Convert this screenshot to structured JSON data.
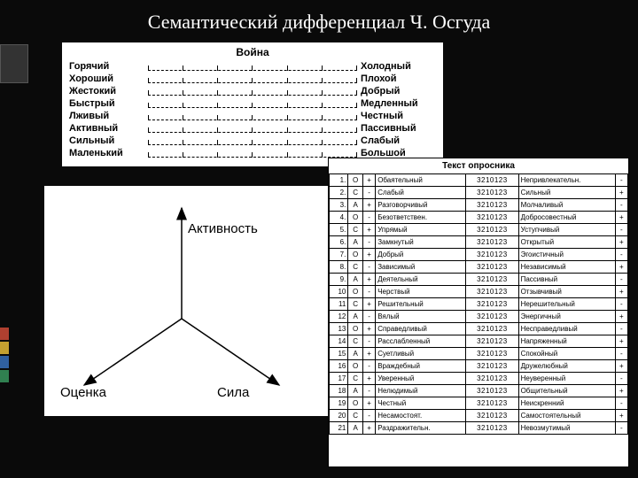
{
  "title": "Семантический дифференциал Ч. Осгуда",
  "sidebar_colors": [
    "#b04030",
    "#c4a030",
    "#3060a0",
    "#308050"
  ],
  "panel1": {
    "heading": "Война",
    "rows": [
      {
        "left": "Горячий",
        "right": "Холодный"
      },
      {
        "left": "Хороший",
        "right": "Плохой"
      },
      {
        "left": "Жестокий",
        "right": "Добрый"
      },
      {
        "left": "Быстрый",
        "right": "Медленный"
      },
      {
        "left": "Лживый",
        "right": "Честный"
      },
      {
        "left": "Активный",
        "right": "Пассивный"
      },
      {
        "left": "Сильный",
        "right": "Слабый"
      },
      {
        "left": "Маленький",
        "right": "Большой"
      }
    ],
    "ticks": 7
  },
  "panel2": {
    "labels": {
      "top": "Активность",
      "left": "Оценка",
      "right": "Сила"
    }
  },
  "panel3": {
    "heading": "Текст опросника",
    "scale": "3210123",
    "rows": [
      {
        "n": "1.",
        "f": "О",
        "s": "+",
        "l": "Обаятельный",
        "r": "Непривлекательн.",
        "s2": "-"
      },
      {
        "n": "2.",
        "f": "С",
        "s": "-",
        "l": "Слабый",
        "r": "Сильный",
        "s2": "+"
      },
      {
        "n": "3.",
        "f": "А",
        "s": "+",
        "l": "Разговорчивый",
        "r": "Молчаливый",
        "s2": "-"
      },
      {
        "n": "4.",
        "f": "О",
        "s": "-",
        "l": "Безответствен.",
        "r": "Добросовестный",
        "s2": "+"
      },
      {
        "n": "5.",
        "f": "С",
        "s": "+",
        "l": "Упрямый",
        "r": "Уступчивый",
        "s2": "-"
      },
      {
        "n": "6.",
        "f": "А",
        "s": "-",
        "l": "Замкнутый",
        "r": "Открытый",
        "s2": "+"
      },
      {
        "n": "7.",
        "f": "О",
        "s": "+",
        "l": "Добрый",
        "r": "Эгоистичный",
        "s2": "-"
      },
      {
        "n": "8.",
        "f": "С",
        "s": "-",
        "l": "Зависимый",
        "r": "Независимый",
        "s2": "+"
      },
      {
        "n": "9.",
        "f": "А",
        "s": "+",
        "l": "Деятельный",
        "r": "Пассивный",
        "s2": "-"
      },
      {
        "n": "10",
        "f": "О",
        "s": "-",
        "l": "Черствый",
        "r": "Отзывчивый",
        "s2": "+"
      },
      {
        "n": "11",
        "f": "С",
        "s": "+",
        "l": "Решительный",
        "r": "Нерешительный",
        "s2": "-"
      },
      {
        "n": "12",
        "f": "А",
        "s": "-",
        "l": "Вялый",
        "r": "Энергичный",
        "s2": "+"
      },
      {
        "n": "13",
        "f": "О",
        "s": "+",
        "l": "Справедливый",
        "r": "Несправедливый",
        "s2": "-"
      },
      {
        "n": "14",
        "f": "С",
        "s": "-",
        "l": "Расслабленный",
        "r": "Напряженный",
        "s2": "+"
      },
      {
        "n": "15",
        "f": "А",
        "s": "+",
        "l": "Суетливый",
        "r": "Спокойный",
        "s2": "-"
      },
      {
        "n": "16",
        "f": "О",
        "s": "-",
        "l": "Враждебный",
        "r": "Дружелюбный",
        "s2": "+"
      },
      {
        "n": "17",
        "f": "С",
        "s": "+",
        "l": "Уверенный",
        "r": "Неуверенный",
        "s2": "-"
      },
      {
        "n": "18",
        "f": "А",
        "s": "-",
        "l": "Нелюдимый",
        "r": "Общительный",
        "s2": "+"
      },
      {
        "n": "19",
        "f": "О",
        "s": "+",
        "l": "Честный",
        "r": "Неискренний",
        "s2": "-"
      },
      {
        "n": "20",
        "f": "С",
        "s": "-",
        "l": "Несамостоят.",
        "r": "Самостоятельный",
        "s2": "+"
      },
      {
        "n": "21",
        "f": "А",
        "s": "+",
        "l": "Раздражительн.",
        "r": "Невозмутимый",
        "s2": "-"
      }
    ]
  }
}
